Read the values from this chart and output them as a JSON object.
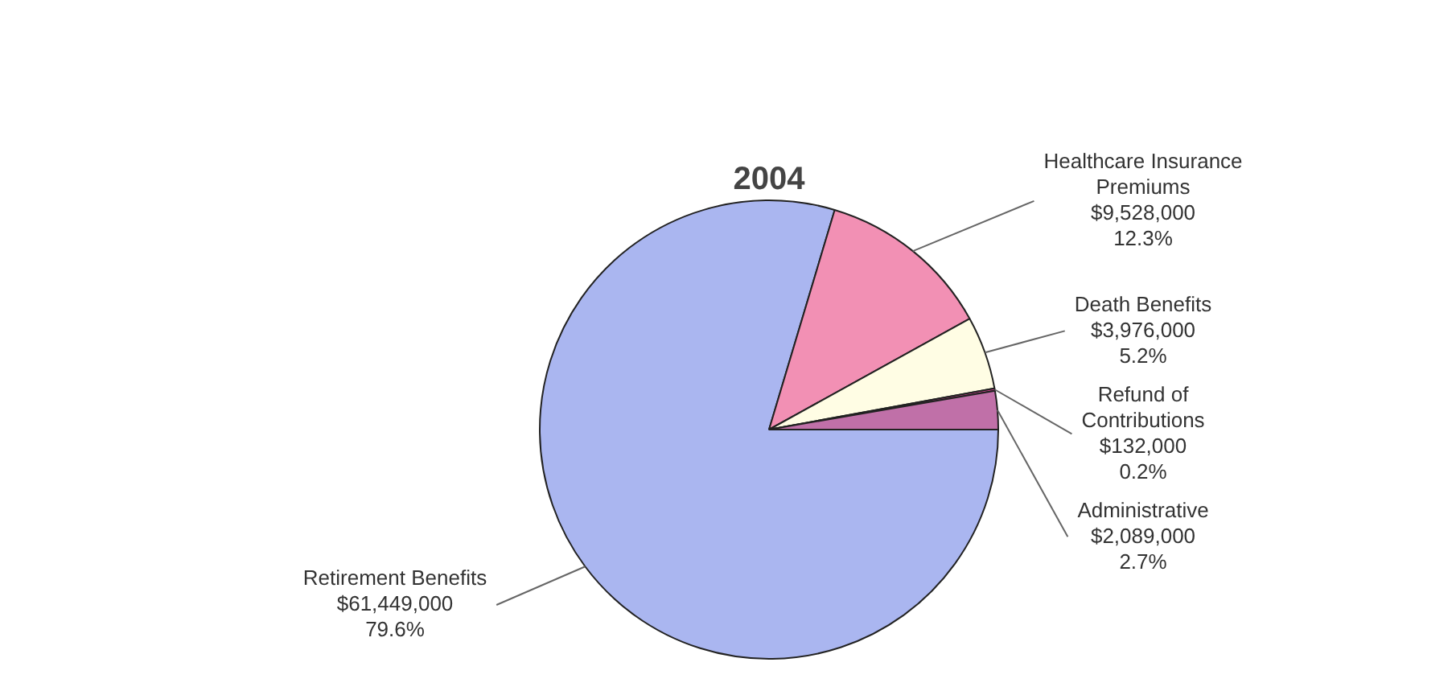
{
  "chart_data": {
    "type": "pie",
    "title": "2004",
    "categories": [
      "Retirement Benefits",
      "Healthcare Insurance Premiums",
      "Death Benefits",
      "Refund of Contributions",
      "Administrative"
    ],
    "values": [
      61449000,
      9528000,
      3976000,
      132000,
      2089000
    ],
    "colors": [
      "#aab6f0",
      "#f290b4",
      "#fffde4",
      "#d04090",
      "#c070a8"
    ],
    "value_labels": [
      "$61,449,000\n79.6%",
      "$9,528,000\n12.3%",
      "$3,976,000\n5.2%",
      "$132,000\n0.2%",
      "$2,089,000\n2.7%"
    ],
    "legend": false
  }
}
